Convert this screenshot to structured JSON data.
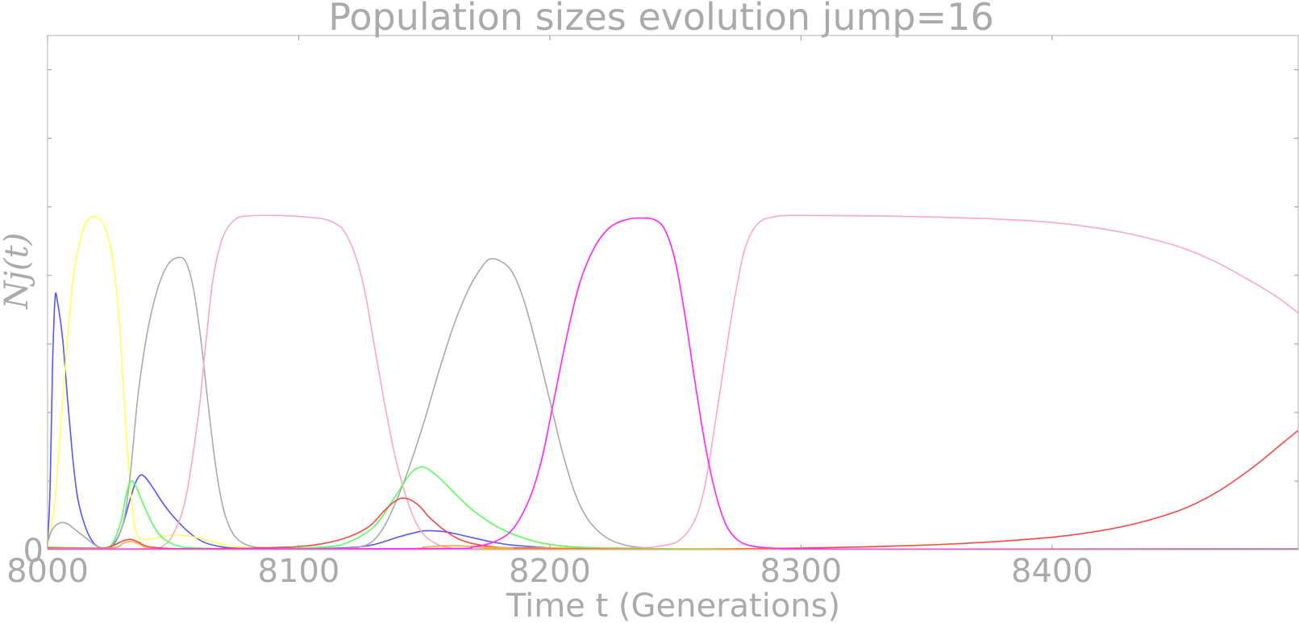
{
  "chart_data": {
    "type": "line",
    "title": "Population sizes evolution jump=16",
    "xlabel": "Time t (Generations)",
    "ylabel": "N_j(t)",
    "ylabel_display": "Nj(t)",
    "xlim": [
      8000,
      8498
    ],
    "ylim": [
      0,
      1
    ],
    "x_ticks": [
      8000,
      8100,
      8200,
      8300,
      8400
    ],
    "x_tick_labels": [
      "8000",
      "8100",
      "8200",
      "8300",
      "8400"
    ],
    "y_tick_labels": [
      "0"
    ],
    "y_minor_ticks": [
      0.1333,
      0.2667,
      0.4,
      0.5333,
      0.6667,
      0.8,
      0.9333
    ],
    "grid": false,
    "legend": "none",
    "series": [
      {
        "name": "blue",
        "color": "#5555ff",
        "points": [
          [
            8000,
            0.01
          ],
          [
            8001,
            0.12
          ],
          [
            8002,
            0.36
          ],
          [
            8003,
            0.49
          ],
          [
            8004,
            0.48
          ],
          [
            8006,
            0.41
          ],
          [
            8008,
            0.29
          ],
          [
            8010,
            0.18
          ],
          [
            8012,
            0.1
          ],
          [
            8015,
            0.045
          ],
          [
            8018,
            0.015
          ],
          [
            8021,
            0.004
          ],
          [
            8025,
            0.004
          ],
          [
            8029,
            0.035
          ],
          [
            8033,
            0.1
          ],
          [
            8035,
            0.13
          ],
          [
            8037,
            0.145
          ],
          [
            8039,
            0.14
          ],
          [
            8042,
            0.12
          ],
          [
            8046,
            0.09
          ],
          [
            8050,
            0.065
          ],
          [
            8056,
            0.035
          ],
          [
            8062,
            0.015
          ],
          [
            8070,
            0.005
          ],
          [
            8080,
            0.002
          ],
          [
            8100,
            0.002
          ],
          [
            8120,
            0.004
          ],
          [
            8130,
            0.01
          ],
          [
            8140,
            0.025
          ],
          [
            8148,
            0.035
          ],
          [
            8152,
            0.037
          ],
          [
            8158,
            0.035
          ],
          [
            8165,
            0.028
          ],
          [
            8175,
            0.017
          ],
          [
            8185,
            0.009
          ],
          [
            8200,
            0.004
          ],
          [
            8230,
            0.001
          ],
          [
            8250,
            0.001
          ],
          [
            8498,
            0.001
          ]
        ]
      },
      {
        "name": "yellow",
        "color": "#ffff55",
        "points": [
          [
            8000,
            0.005
          ],
          [
            8003,
            0.1
          ],
          [
            8006,
            0.29
          ],
          [
            8010,
            0.52
          ],
          [
            8014,
            0.62
          ],
          [
            8017,
            0.645
          ],
          [
            8019,
            0.647
          ],
          [
            8022,
            0.635
          ],
          [
            8025,
            0.59
          ],
          [
            8028,
            0.48
          ],
          [
            8030,
            0.33
          ],
          [
            8032,
            0.18
          ],
          [
            8034,
            0.07
          ],
          [
            8036,
            0.025
          ],
          [
            8040,
            0.02
          ],
          [
            8045,
            0.025
          ],
          [
            8050,
            0.028
          ],
          [
            8056,
            0.027
          ],
          [
            8062,
            0.02
          ],
          [
            8070,
            0.01
          ],
          [
            8080,
            0.004
          ],
          [
            8100,
            0.002
          ],
          [
            8150,
            0.002
          ],
          [
            8200,
            0.004
          ],
          [
            8230,
            0.003
          ],
          [
            8260,
            0.001
          ],
          [
            8498,
            0.001
          ]
        ]
      },
      {
        "name": "gray",
        "color": "#aaaaaa",
        "points": [
          [
            8000,
            0.015
          ],
          [
            8002,
            0.04
          ],
          [
            8005,
            0.052
          ],
          [
            8008,
            0.05
          ],
          [
            8012,
            0.035
          ],
          [
            8016,
            0.02
          ],
          [
            8020,
            0.006
          ],
          [
            8025,
            0.006
          ],
          [
            8030,
            0.05
          ],
          [
            8033,
            0.15
          ],
          [
            8036,
            0.3
          ],
          [
            8040,
            0.43
          ],
          [
            8044,
            0.51
          ],
          [
            8048,
            0.555
          ],
          [
            8052,
            0.568
          ],
          [
            8055,
            0.56
          ],
          [
            8058,
            0.51
          ],
          [
            8061,
            0.41
          ],
          [
            8064,
            0.28
          ],
          [
            8067,
            0.16
          ],
          [
            8070,
            0.08
          ],
          [
            8074,
            0.03
          ],
          [
            8080,
            0.008
          ],
          [
            8090,
            0.003
          ],
          [
            8110,
            0.002
          ],
          [
            8125,
            0.006
          ],
          [
            8132,
            0.03
          ],
          [
            8138,
            0.085
          ],
          [
            8144,
            0.16
          ],
          [
            8150,
            0.25
          ],
          [
            8156,
            0.35
          ],
          [
            8162,
            0.44
          ],
          [
            8168,
            0.51
          ],
          [
            8173,
            0.55
          ],
          [
            8176,
            0.565
          ],
          [
            8180,
            0.562
          ],
          [
            8185,
            0.54
          ],
          [
            8190,
            0.48
          ],
          [
            8195,
            0.39
          ],
          [
            8200,
            0.29
          ],
          [
            8205,
            0.19
          ],
          [
            8210,
            0.11
          ],
          [
            8215,
            0.06
          ],
          [
            8222,
            0.025
          ],
          [
            8230,
            0.009
          ],
          [
            8240,
            0.003
          ],
          [
            8260,
            0.001
          ],
          [
            8498,
            0.001
          ]
        ]
      },
      {
        "name": "pink",
        "color": "#ffa5c8",
        "points": [
          [
            8000,
            0.001
          ],
          [
            8040,
            0.002
          ],
          [
            8046,
            0.008
          ],
          [
            8050,
            0.03
          ],
          [
            8055,
            0.1
          ],
          [
            8060,
            0.26
          ],
          [
            8063,
            0.4
          ],
          [
            8066,
            0.53
          ],
          [
            8070,
            0.61
          ],
          [
            8075,
            0.643
          ],
          [
            8080,
            0.649
          ],
          [
            8090,
            0.65
          ],
          [
            8100,
            0.648
          ],
          [
            8110,
            0.643
          ],
          [
            8115,
            0.633
          ],
          [
            8118,
            0.62
          ],
          [
            8122,
            0.58
          ],
          [
            8126,
            0.51
          ],
          [
            8130,
            0.4
          ],
          [
            8134,
            0.29
          ],
          [
            8138,
            0.19
          ],
          [
            8142,
            0.115
          ],
          [
            8146,
            0.06
          ],
          [
            8150,
            0.028
          ],
          [
            8155,
            0.011
          ],
          [
            8160,
            0.004
          ],
          [
            8170,
            0.002
          ],
          [
            8230,
            0.003
          ],
          [
            8245,
            0.008
          ],
          [
            8252,
            0.02
          ],
          [
            8258,
            0.06
          ],
          [
            8262,
            0.13
          ],
          [
            8266,
            0.25
          ],
          [
            8270,
            0.38
          ],
          [
            8274,
            0.5
          ],
          [
            8278,
            0.59
          ],
          [
            8283,
            0.635
          ],
          [
            8290,
            0.648
          ],
          [
            8300,
            0.65
          ],
          [
            8330,
            0.649
          ],
          [
            8360,
            0.646
          ],
          [
            8390,
            0.64
          ],
          [
            8410,
            0.631
          ],
          [
            8430,
            0.615
          ],
          [
            8450,
            0.59
          ],
          [
            8465,
            0.56
          ],
          [
            8480,
            0.52
          ],
          [
            8490,
            0.49
          ],
          [
            8498,
            0.46
          ]
        ]
      },
      {
        "name": "green",
        "color": "#55ff55",
        "points": [
          [
            8000,
            0.005
          ],
          [
            8020,
            0.003
          ],
          [
            8025,
            0.007
          ],
          [
            8029,
            0.05
          ],
          [
            8031,
            0.1
          ],
          [
            8033,
            0.132
          ],
          [
            8035,
            0.125
          ],
          [
            8038,
            0.09
          ],
          [
            8042,
            0.048
          ],
          [
            8046,
            0.022
          ],
          [
            8052,
            0.007
          ],
          [
            8060,
            0.003
          ],
          [
            8080,
            0.002
          ],
          [
            8110,
            0.005
          ],
          [
            8120,
            0.015
          ],
          [
            8130,
            0.045
          ],
          [
            8138,
            0.1
          ],
          [
            8144,
            0.145
          ],
          [
            8148,
            0.16
          ],
          [
            8151,
            0.158
          ],
          [
            8156,
            0.14
          ],
          [
            8162,
            0.11
          ],
          [
            8170,
            0.074
          ],
          [
            8180,
            0.042
          ],
          [
            8190,
            0.022
          ],
          [
            8200,
            0.01
          ],
          [
            8215,
            0.004
          ],
          [
            8240,
            0.002
          ],
          [
            8300,
            0.001
          ],
          [
            8498,
            0.002
          ]
        ]
      },
      {
        "name": "red",
        "color": "#ff4444",
        "points": [
          [
            8000,
            0.003
          ],
          [
            8020,
            0.003
          ],
          [
            8025,
            0.006
          ],
          [
            8030,
            0.017
          ],
          [
            8033,
            0.02
          ],
          [
            8036,
            0.015
          ],
          [
            8040,
            0.006
          ],
          [
            8050,
            0.002
          ],
          [
            8070,
            0.002
          ],
          [
            8090,
            0.004
          ],
          [
            8100,
            0.006
          ],
          [
            8110,
            0.012
          ],
          [
            8120,
            0.025
          ],
          [
            8128,
            0.045
          ],
          [
            8134,
            0.075
          ],
          [
            8138,
            0.093
          ],
          [
            8141,
            0.1
          ],
          [
            8144,
            0.098
          ],
          [
            8148,
            0.085
          ],
          [
            8152,
            0.063
          ],
          [
            8158,
            0.038
          ],
          [
            8165,
            0.018
          ],
          [
            8175,
            0.007
          ],
          [
            8190,
            0.003
          ],
          [
            8250,
            0.001
          ],
          [
            8280,
            0.002
          ],
          [
            8300,
            0.003
          ],
          [
            8330,
            0.006
          ],
          [
            8360,
            0.011
          ],
          [
            8390,
            0.02
          ],
          [
            8410,
            0.03
          ],
          [
            8430,
            0.047
          ],
          [
            8450,
            0.075
          ],
          [
            8465,
            0.11
          ],
          [
            8480,
            0.16
          ],
          [
            8490,
            0.2
          ],
          [
            8498,
            0.232
          ]
        ]
      },
      {
        "name": "orange",
        "color": "#ffaa33",
        "points": [
          [
            8000,
            0.002
          ],
          [
            8025,
            0.003
          ],
          [
            8030,
            0.012
          ],
          [
            8033,
            0.016
          ],
          [
            8036,
            0.012
          ],
          [
            8040,
            0.004
          ],
          [
            8050,
            0.001
          ],
          [
            8140,
            0.002
          ],
          [
            8150,
            0.005
          ],
          [
            8160,
            0.008
          ],
          [
            8170,
            0.006
          ],
          [
            8185,
            0.003
          ],
          [
            8200,
            0.001
          ],
          [
            8498,
            0.001
          ]
        ]
      },
      {
        "name": "magenta",
        "color": "#ff22ff",
        "points": [
          [
            8000,
            0.001
          ],
          [
            8150,
            0.002
          ],
          [
            8170,
            0.006
          ],
          [
            8180,
            0.02
          ],
          [
            8186,
            0.045
          ],
          [
            8192,
            0.1
          ],
          [
            8197,
            0.18
          ],
          [
            8202,
            0.3
          ],
          [
            8207,
            0.42
          ],
          [
            8212,
            0.52
          ],
          [
            8218,
            0.59
          ],
          [
            8224,
            0.627
          ],
          [
            8230,
            0.641
          ],
          [
            8236,
            0.645
          ],
          [
            8242,
            0.641
          ],
          [
            8246,
            0.62
          ],
          [
            8250,
            0.56
          ],
          [
            8254,
            0.45
          ],
          [
            8258,
            0.32
          ],
          [
            8262,
            0.2
          ],
          [
            8266,
            0.11
          ],
          [
            8270,
            0.05
          ],
          [
            8275,
            0.018
          ],
          [
            8282,
            0.006
          ],
          [
            8295,
            0.002
          ],
          [
            8320,
            0.001
          ],
          [
            8498,
            0.001
          ]
        ]
      }
    ]
  }
}
